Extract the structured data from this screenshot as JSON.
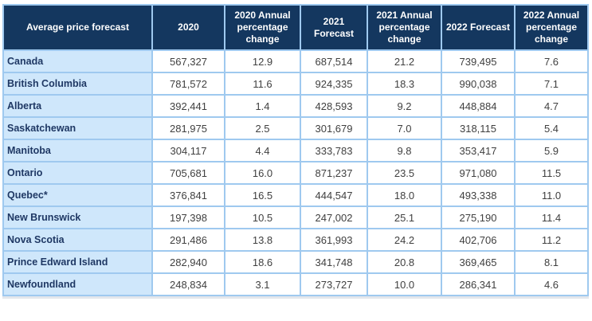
{
  "colors": {
    "header_bg": "#14375f",
    "header_text": "#ffffff",
    "row_label_bg": "#cfe7fb",
    "row_label_text": "#1f3864",
    "border": "#9fc9ef",
    "value_text": "#404040"
  },
  "chart_data": {
    "type": "table",
    "title": "Average price forecast",
    "columns": [
      "Average price forecast",
      "2020",
      "2020 Annual percentage change",
      "2021 Forecast",
      "2021 Annual percentage change",
      "2022 Forecast",
      "2022 Annual percentage change"
    ],
    "rows": [
      {
        "region": "Canada",
        "values": [
          "567,327",
          "12.9",
          "687,514",
          "21.2",
          "739,495",
          "7.6"
        ]
      },
      {
        "region": "British Columbia",
        "values": [
          "781,572",
          "11.6",
          "924,335",
          "18.3",
          "990,038",
          "7.1"
        ]
      },
      {
        "region": "Alberta",
        "values": [
          "392,441",
          "1.4",
          "428,593",
          "9.2",
          "448,884",
          "4.7"
        ]
      },
      {
        "region": "Saskatchewan",
        "values": [
          "281,975",
          "2.5",
          "301,679",
          "7.0",
          "318,115",
          "5.4"
        ]
      },
      {
        "region": "Manitoba",
        "values": [
          "304,117",
          "4.4",
          "333,783",
          "9.8",
          "353,417",
          "5.9"
        ]
      },
      {
        "region": "Ontario",
        "values": [
          "705,681",
          "16.0",
          "871,237",
          "23.5",
          "971,080",
          "11.5"
        ]
      },
      {
        "region": "Quebec*",
        "values": [
          "376,841",
          "16.5",
          "444,547",
          "18.0",
          "493,338",
          "11.0"
        ]
      },
      {
        "region": "New Brunswick",
        "values": [
          "197,398",
          "10.5",
          "247,002",
          "25.1",
          "275,190",
          "11.4"
        ]
      },
      {
        "region": "Nova Scotia",
        "values": [
          "291,486",
          "13.8",
          "361,993",
          "24.2",
          "402,706",
          "11.2"
        ]
      },
      {
        "region": "Prince Edward Island",
        "values": [
          "282,940",
          "18.6",
          "341,748",
          "20.8",
          "369,465",
          "8.1"
        ]
      },
      {
        "region": "Newfoundland",
        "values": [
          "248,834",
          "3.1",
          "273,727",
          "10.0",
          "286,341",
          "4.6"
        ]
      }
    ]
  }
}
